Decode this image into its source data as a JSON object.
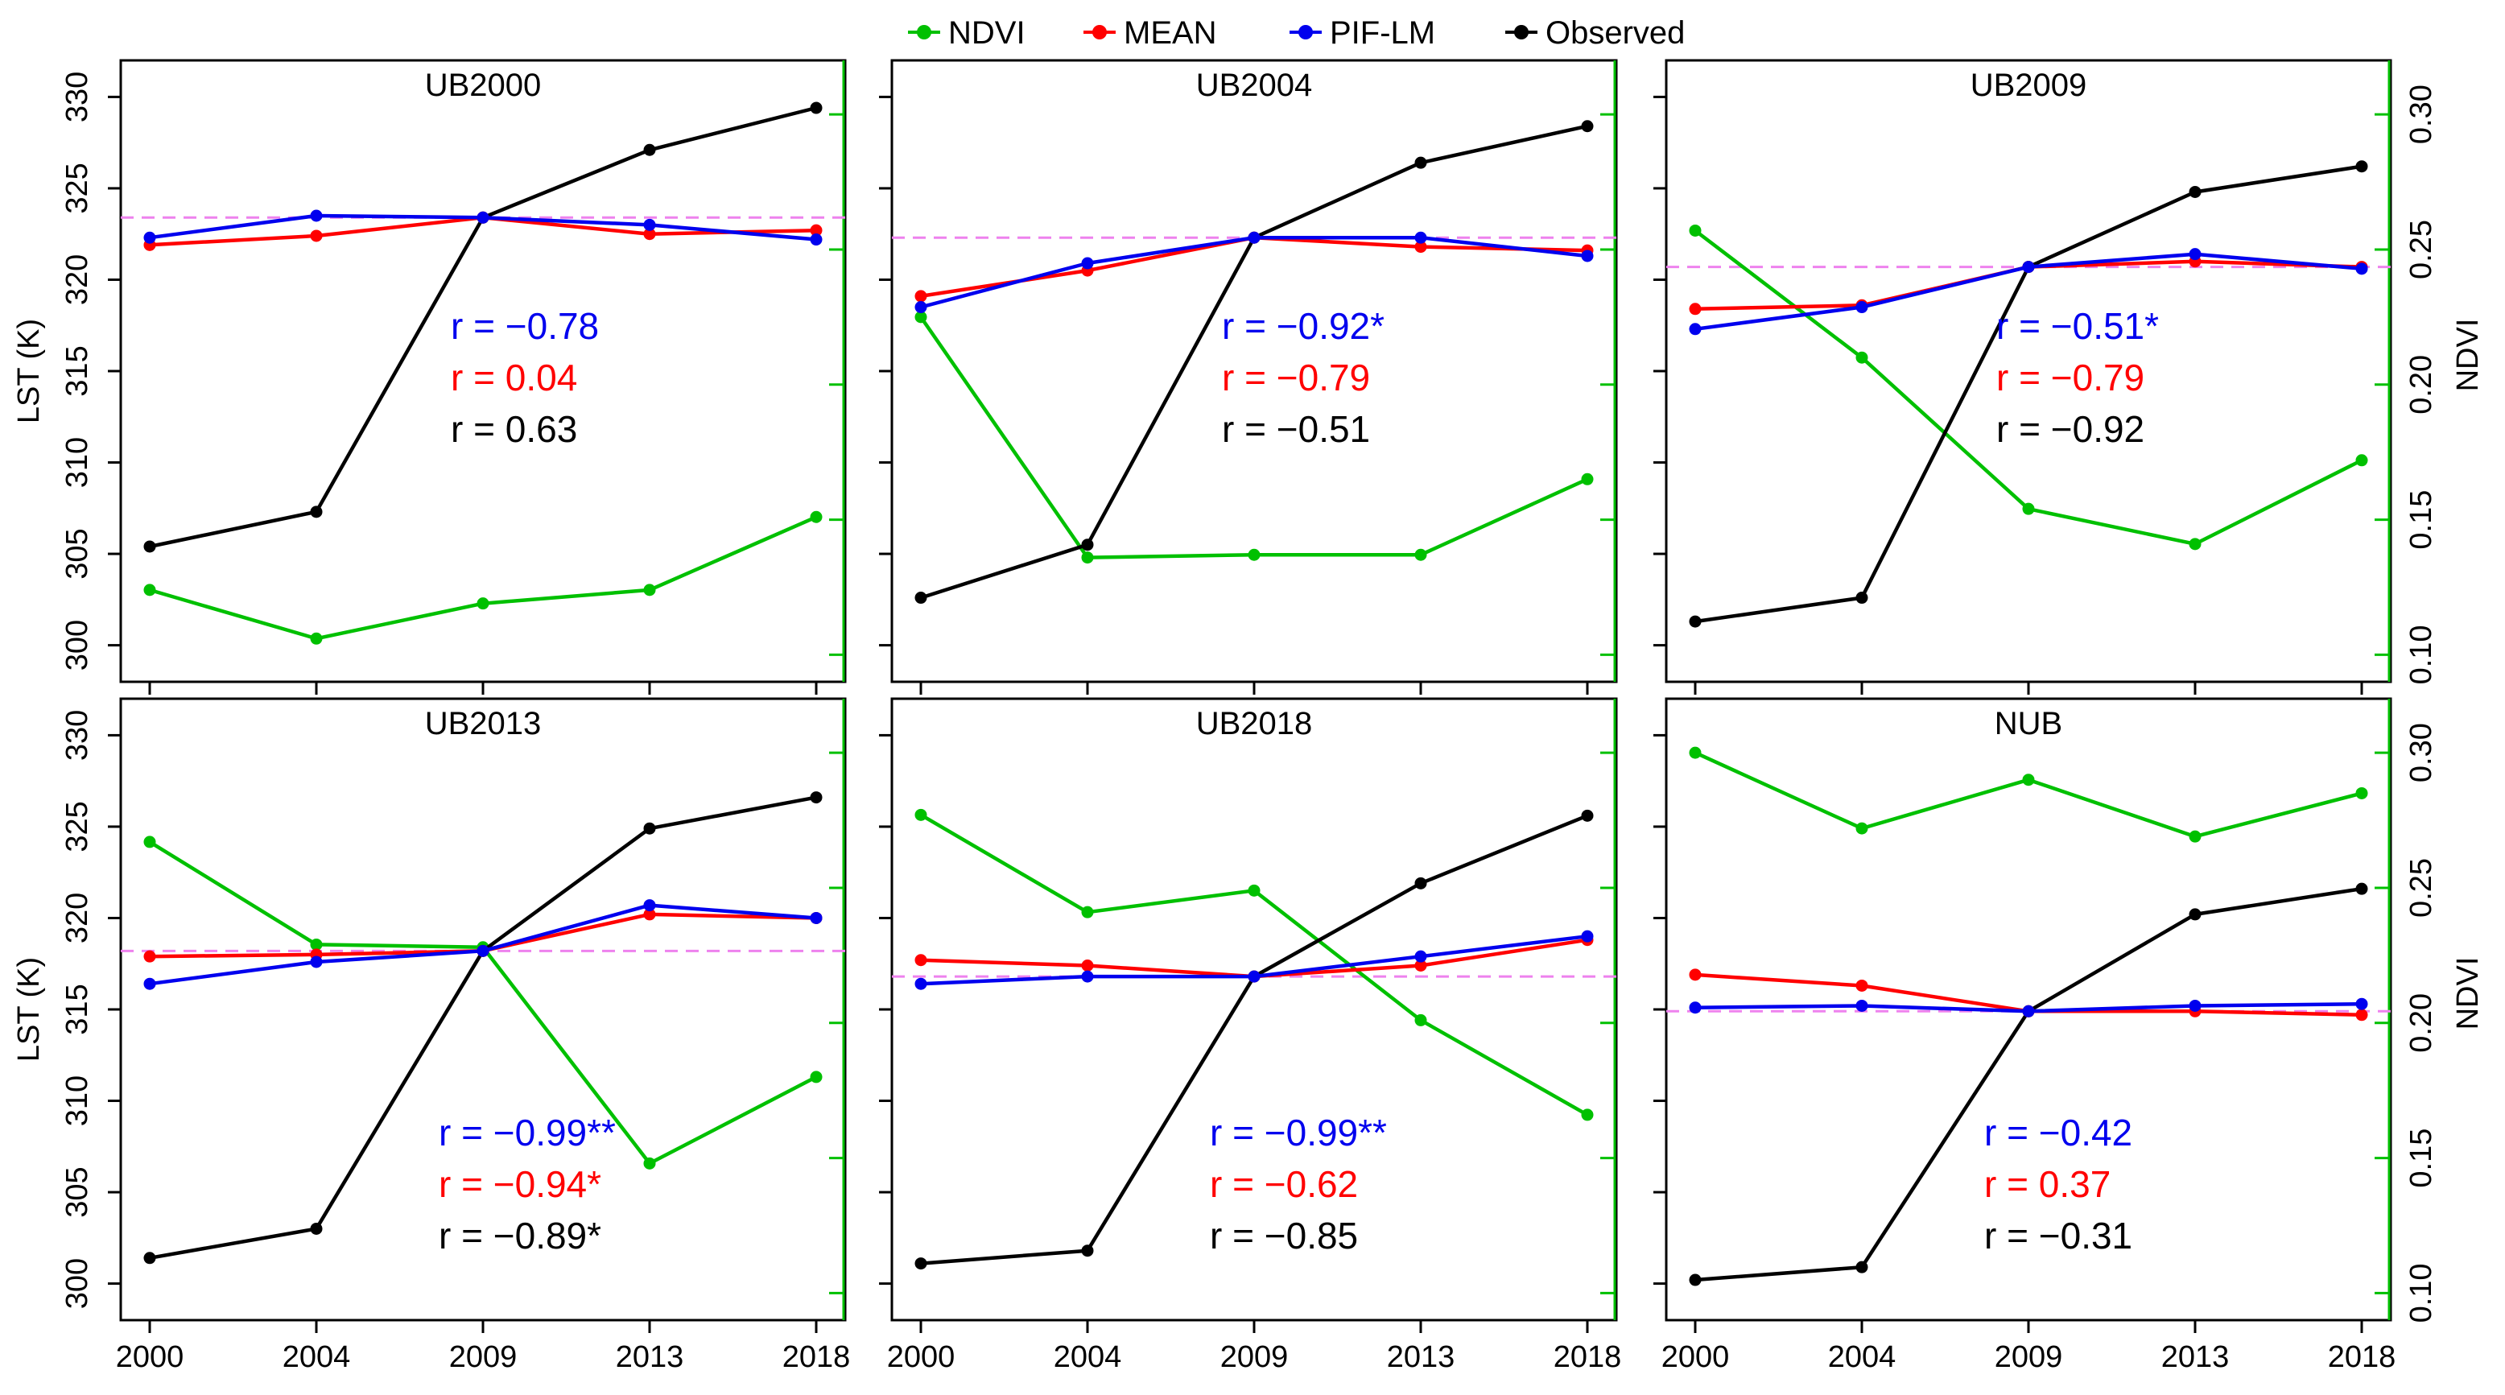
{
  "legend": {
    "items": [
      {
        "label": "NDVI",
        "color": "#00c000"
      },
      {
        "label": "MEAN",
        "color": "#ff0000"
      },
      {
        "label": "PIF-LM",
        "color": "#0000ee"
      },
      {
        "label": "Observed",
        "color": "#000000"
      }
    ]
  },
  "colors": {
    "ndvi": "#00c000",
    "mean": "#ff0000",
    "pif": "#0000ee",
    "observed": "#000000",
    "reference": "#ee82ee",
    "ndvi_axis": "#00c000"
  },
  "chart_data": {
    "type": "line",
    "x": [
      "2000",
      "2004",
      "2009",
      "2013",
      "2018"
    ],
    "left_axis": {
      "label": "LST (K)",
      "range": [
        298,
        332
      ],
      "ticks": [
        "300",
        "305",
        "310",
        "315",
        "320",
        "325",
        "330"
      ]
    },
    "right_axis": {
      "label": "NDVI",
      "range": [
        0.09,
        0.32
      ],
      "ticks": [
        "0.10",
        "0.15",
        "0.20",
        "0.25",
        "0.30"
      ]
    },
    "panels": [
      {
        "title": "UB2000",
        "observed": [
          305.4,
          307.3,
          323.4,
          327.1,
          329.4
        ],
        "mean": [
          321.9,
          322.4,
          323.4,
          322.5,
          322.7
        ],
        "pif_lm": [
          322.3,
          323.5,
          323.4,
          323.0,
          322.2
        ],
        "reference": 323.4,
        "ndvi": [
          0.124,
          0.106,
          0.119,
          0.124,
          0.151
        ],
        "r": [
          {
            "text": "r = −0.78",
            "series": "pif"
          },
          {
            "text": "r = 0.04",
            "series": "mean"
          },
          {
            "text": "r = 0.63",
            "series": "observed"
          }
        ]
      },
      {
        "title": "UB2004",
        "observed": [
          302.6,
          305.5,
          322.3,
          326.4,
          328.4
        ],
        "mean": [
          319.1,
          320.5,
          322.3,
          321.8,
          321.6
        ],
        "pif_lm": [
          318.5,
          320.9,
          322.3,
          322.3,
          321.3
        ],
        "reference": 322.3,
        "ndvi": [
          0.225,
          0.136,
          0.137,
          0.137,
          0.165
        ],
        "r": [
          {
            "text": "r = −0.92*",
            "series": "pif"
          },
          {
            "text": "r = −0.79",
            "series": "mean"
          },
          {
            "text": "r = −0.51",
            "series": "observed"
          }
        ]
      },
      {
        "title": "UB2009",
        "observed": [
          301.3,
          302.6,
          320.7,
          324.8,
          326.2
        ],
        "mean": [
          318.4,
          318.6,
          320.7,
          321.0,
          320.7
        ],
        "pif_lm": [
          317.3,
          318.5,
          320.7,
          321.4,
          320.6
        ],
        "reference": 320.7,
        "ndvi": [
          0.257,
          0.21,
          0.154,
          0.141,
          0.172
        ],
        "r": [
          {
            "text": "r = −0.51*",
            "series": "pif"
          },
          {
            "text": "r = −0.79",
            "series": "mean"
          },
          {
            "text": "r = −0.92",
            "series": "observed"
          }
        ]
      },
      {
        "title": "UB2013",
        "observed": [
          301.4,
          303.0,
          318.2,
          324.9,
          326.6
        ],
        "mean": [
          317.9,
          318.0,
          318.2,
          320.2,
          320.0
        ],
        "pif_lm": [
          316.4,
          317.6,
          318.2,
          320.7,
          320.0
        ],
        "reference": 318.2,
        "ndvi": [
          0.267,
          0.229,
          0.228,
          0.148,
          0.18
        ],
        "r": [
          {
            "text": "r = −0.99**",
            "series": "pif"
          },
          {
            "text": "r = −0.94*",
            "series": "mean"
          },
          {
            "text": "r = −0.89*",
            "series": "observed"
          }
        ]
      },
      {
        "title": "UB2018",
        "observed": [
          301.1,
          301.8,
          316.8,
          321.9,
          325.6
        ],
        "mean": [
          317.7,
          317.4,
          316.8,
          317.4,
          318.8
        ],
        "pif_lm": [
          316.4,
          316.8,
          316.8,
          317.9,
          319.0
        ],
        "reference": 316.8,
        "ndvi": [
          0.277,
          0.241,
          0.249,
          0.201,
          0.166
        ],
        "r": [
          {
            "text": "r = −0.99**",
            "series": "pif"
          },
          {
            "text": "r = −0.62",
            "series": "mean"
          },
          {
            "text": "r = −0.85",
            "series": "observed"
          }
        ]
      },
      {
        "title": "NUB",
        "observed": [
          300.2,
          300.9,
          314.9,
          320.2,
          321.6
        ],
        "mean": [
          316.9,
          316.3,
          314.9,
          314.9,
          314.7
        ],
        "pif_lm": [
          315.1,
          315.2,
          314.9,
          315.2,
          315.3
        ],
        "reference": 314.9,
        "ndvi": [
          0.3,
          0.272,
          0.29,
          0.269,
          0.285
        ],
        "r": [
          {
            "text": "r = −0.42",
            "series": "pif"
          },
          {
            "text": "r = 0.37",
            "series": "mean"
          },
          {
            "text": "r = −0.31",
            "series": "observed"
          }
        ]
      }
    ]
  }
}
